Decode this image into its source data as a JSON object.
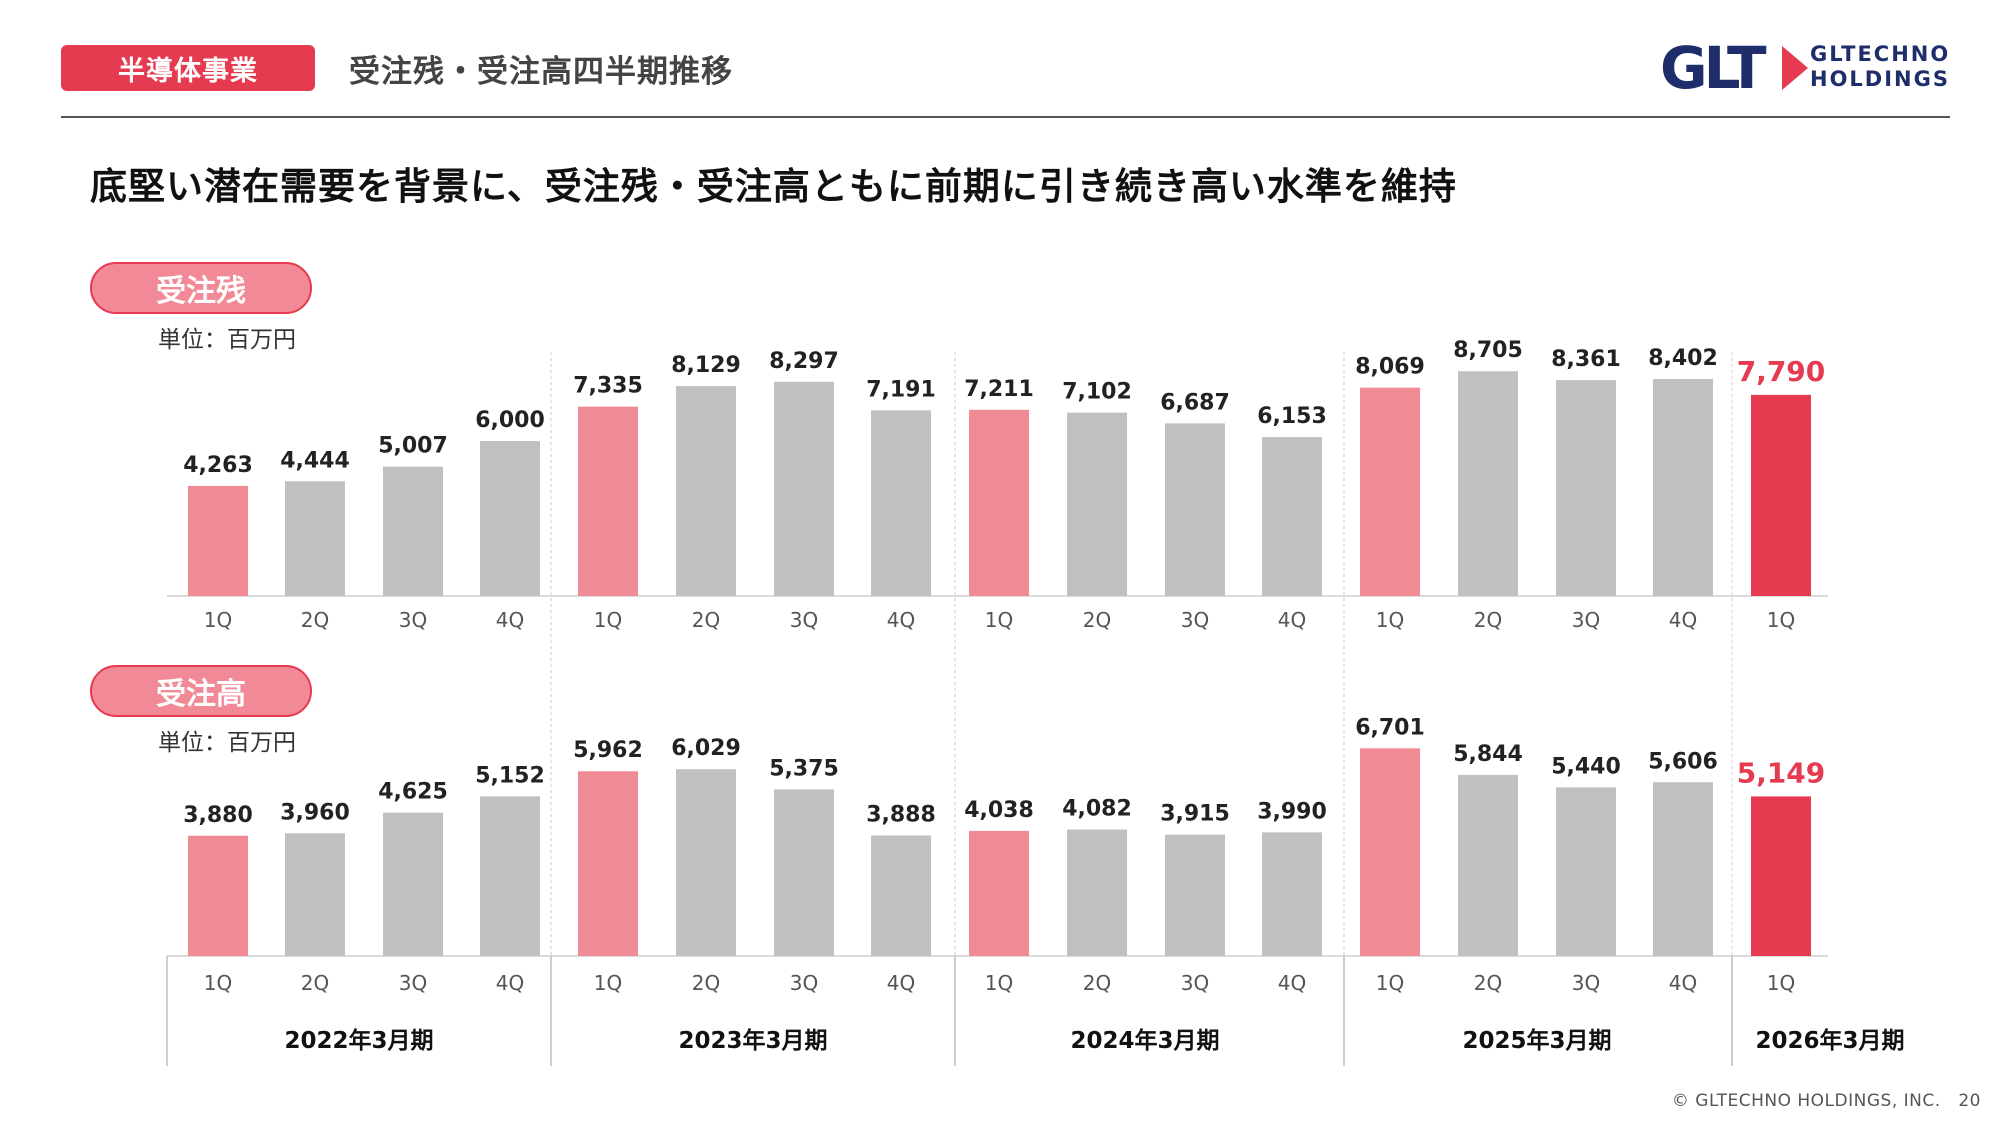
{
  "header": {
    "segment_tag": "半導体事業",
    "subtitle": "受注残・受注高四半期推移",
    "logo_mark": "GLT",
    "logo_line1": "GLTECHNO",
    "logo_line2": "HOLDINGS"
  },
  "headline": "底堅い潜在需要を背景に、受注残・受注高ともに前期に引き続き高い水準を維持",
  "footer": {
    "copyright": "© GLTECHNO HOLDINGS, INC.",
    "page": "20"
  },
  "colors": {
    "accent": "#e53a4f",
    "first_quarter": "#f08a94",
    "other_quarter": "#c0c0c0",
    "latest": "#e53a4f"
  },
  "chart_data": [
    {
      "type": "bar",
      "title": "受注残",
      "unit": "単位：百万円",
      "categories": [
        "1Q",
        "2Q",
        "3Q",
        "4Q",
        "1Q",
        "2Q",
        "3Q",
        "4Q",
        "1Q",
        "2Q",
        "3Q",
        "4Q",
        "1Q",
        "2Q",
        "3Q",
        "4Q",
        "1Q"
      ],
      "groups": [
        "2022年3月期",
        "2023年3月期",
        "2024年3月期",
        "2025年3月期",
        "2026年3月期"
      ],
      "values": [
        4263,
        4444,
        5007,
        6000,
        7335,
        8129,
        8297,
        7191,
        7211,
        7102,
        6687,
        6153,
        8069,
        8705,
        8361,
        8402,
        7790
      ],
      "labels": [
        "4,263",
        "4,444",
        "5,007",
        "6,000",
        "7,335",
        "8,129",
        "8,297",
        "7,191",
        "7,211",
        "7,102",
        "6,687",
        "6,153",
        "8,069",
        "8,705",
        "8,361",
        "8,402",
        "7,790"
      ]
    },
    {
      "type": "bar",
      "title": "受注高",
      "unit": "単位：百万円",
      "categories": [
        "1Q",
        "2Q",
        "3Q",
        "4Q",
        "1Q",
        "2Q",
        "3Q",
        "4Q",
        "1Q",
        "2Q",
        "3Q",
        "4Q",
        "1Q",
        "2Q",
        "3Q",
        "4Q",
        "1Q"
      ],
      "groups": [
        "2022年3月期",
        "2023年3月期",
        "2024年3月期",
        "2025年3月期",
        "2026年3月期"
      ],
      "values": [
        3880,
        3960,
        4625,
        5152,
        5962,
        6029,
        5375,
        3888,
        4038,
        4082,
        3915,
        3990,
        6701,
        5844,
        5440,
        5606,
        5149
      ],
      "labels": [
        "3,880",
        "3,960",
        "4,625",
        "5,152",
        "5,962",
        "6,029",
        "5,375",
        "3,888",
        "4,038",
        "4,082",
        "3,915",
        "3,990",
        "6,701",
        "5,844",
        "5,440",
        "5,606",
        "5,149"
      ]
    }
  ]
}
